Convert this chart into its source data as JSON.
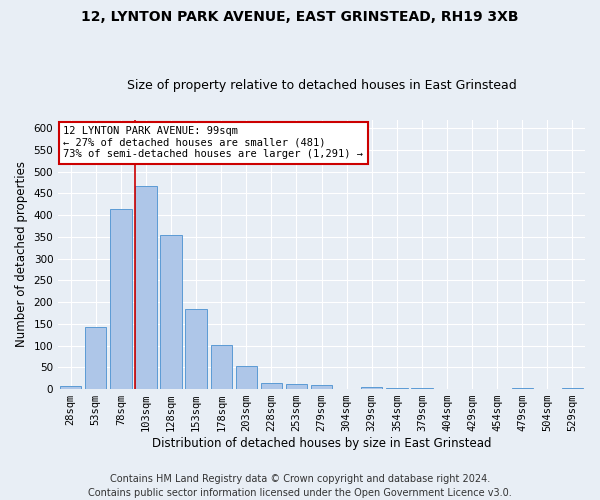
{
  "title": "12, LYNTON PARK AVENUE, EAST GRINSTEAD, RH19 3XB",
  "subtitle": "Size of property relative to detached houses in East Grinstead",
  "xlabel": "Distribution of detached houses by size in East Grinstead",
  "ylabel": "Number of detached properties",
  "categories": [
    "28sqm",
    "53sqm",
    "78sqm",
    "103sqm",
    "128sqm",
    "153sqm",
    "178sqm",
    "203sqm",
    "228sqm",
    "253sqm",
    "279sqm",
    "304sqm",
    "329sqm",
    "354sqm",
    "379sqm",
    "404sqm",
    "429sqm",
    "454sqm",
    "479sqm",
    "504sqm",
    "529sqm"
  ],
  "values": [
    8,
    143,
    415,
    468,
    355,
    185,
    102,
    54,
    15,
    12,
    10,
    0,
    5,
    3,
    2,
    0,
    0,
    0,
    3,
    0,
    3
  ],
  "bar_color": "#aec6e8",
  "bar_edge_color": "#5b9bd5",
  "red_line_index": 3,
  "annotation_line1": "12 LYNTON PARK AVENUE: 99sqm",
  "annotation_line2": "← 27% of detached houses are smaller (481)",
  "annotation_line3": "73% of semi-detached houses are larger (1,291) →",
  "annotation_box_color": "#ffffff",
  "annotation_box_edge_color": "#cc0000",
  "ylim": [
    0,
    620
  ],
  "yticks": [
    0,
    50,
    100,
    150,
    200,
    250,
    300,
    350,
    400,
    450,
    500,
    550,
    600
  ],
  "footer_line1": "Contains HM Land Registry data © Crown copyright and database right 2024.",
  "footer_line2": "Contains public sector information licensed under the Open Government Licence v3.0.",
  "bg_color": "#e8eef5",
  "plot_bg_color": "#e8eef5",
  "grid_color": "#ffffff",
  "title_fontsize": 10,
  "subtitle_fontsize": 9,
  "axis_label_fontsize": 8.5,
  "tick_fontsize": 7.5,
  "footer_fontsize": 7
}
